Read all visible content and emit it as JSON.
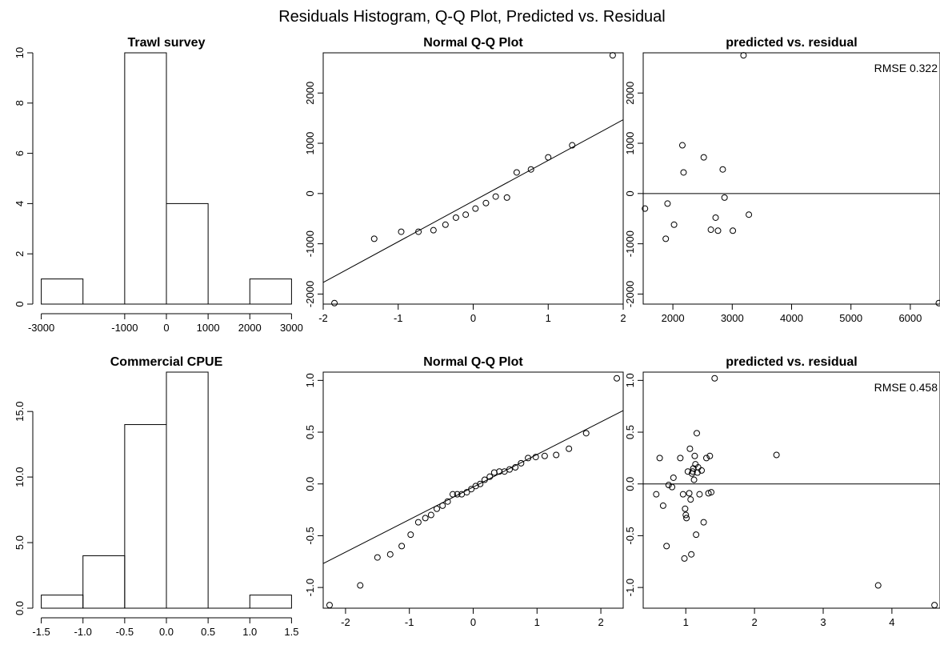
{
  "figure": {
    "title": "Residuals Histogram, Q-Q Plot, Predicted vs. Residual"
  },
  "chart_data": [
    {
      "type": "histogram",
      "title": "Trawl survey",
      "xlabel": "",
      "ylabel": "",
      "xlim": [
        -3000,
        3000
      ],
      "ylim": [
        0,
        10
      ],
      "xticks": [
        -3000,
        -1000,
        0,
        1000,
        2000,
        3000
      ],
      "yticks": [
        0,
        2,
        4,
        6,
        8,
        10
      ],
      "bins": [
        {
          "from": -3000,
          "to": -2000,
          "count": 1
        },
        {
          "from": -2000,
          "to": -1000,
          "count": 0
        },
        {
          "from": -1000,
          "to": 0,
          "count": 10
        },
        {
          "from": 0,
          "to": 1000,
          "count": 4
        },
        {
          "from": 1000,
          "to": 2000,
          "count": 0
        },
        {
          "from": 2000,
          "to": 3000,
          "count": 1
        }
      ]
    },
    {
      "type": "scatter",
      "title": "Normal Q-Q Plot",
      "xlabel": "",
      "ylabel": "",
      "xlim": [
        -2,
        2
      ],
      "ylim": [
        -2200,
        2800
      ],
      "xticks": [
        -2,
        -1,
        0,
        1,
        2
      ],
      "yticks": [
        -2000,
        -1000,
        0,
        1000,
        2000
      ],
      "line": {
        "x": [
          -2.1,
          2.1
        ],
        "y": [
          -1850,
          1550
        ]
      },
      "points": [
        [
          -1.85,
          -2180
        ],
        [
          -1.32,
          -900
        ],
        [
          -0.96,
          -760
        ],
        [
          -0.73,
          -760
        ],
        [
          -0.53,
          -730
        ],
        [
          -0.37,
          -620
        ],
        [
          -0.23,
          -480
        ],
        [
          -0.1,
          -420
        ],
        [
          0.03,
          -300
        ],
        [
          0.17,
          -190
        ],
        [
          0.3,
          -60
        ],
        [
          0.45,
          -80
        ],
        [
          0.58,
          420
        ],
        [
          0.77,
          480
        ],
        [
          1.0,
          720
        ],
        [
          1.32,
          960
        ],
        [
          1.86,
          2750
        ]
      ]
    },
    {
      "type": "scatter",
      "title": "predicted vs. residual",
      "xlabel": "",
      "ylabel": "",
      "xlim": [
        1500,
        6500
      ],
      "ylim": [
        -2200,
        2800
      ],
      "xticks": [
        2000,
        3000,
        4000,
        5000,
        6000
      ],
      "yticks": [
        -2000,
        -1000,
        0,
        1000,
        2000
      ],
      "hline": 0,
      "annotation": "RMSE 0.322",
      "points": [
        [
          1530,
          -300
        ],
        [
          1880,
          -900
        ],
        [
          1910,
          -200
        ],
        [
          2020,
          -620
        ],
        [
          2160,
          960
        ],
        [
          2180,
          420
        ],
        [
          2520,
          720
        ],
        [
          2640,
          -720
        ],
        [
          2720,
          -480
        ],
        [
          2760,
          -740
        ],
        [
          2840,
          480
        ],
        [
          2870,
          -80
        ],
        [
          3010,
          -740
        ],
        [
          3190,
          2750
        ],
        [
          3280,
          -420
        ],
        [
          6480,
          -2180
        ]
      ]
    },
    {
      "type": "histogram",
      "title": "Commercial CPUE",
      "xlabel": "",
      "ylabel": "",
      "xlim": [
        -1.5,
        1.5
      ],
      "ylim": [
        0,
        18
      ],
      "xticks": [
        -1.5,
        -1.0,
        -0.5,
        0.0,
        0.5,
        1.0,
        1.5
      ],
      "yticks": [
        0,
        5,
        10,
        15
      ],
      "bins": [
        {
          "from": -1.5,
          "to": -1.0,
          "count": 1
        },
        {
          "from": -1.0,
          "to": -0.5,
          "count": 4
        },
        {
          "from": -0.5,
          "to": 0.0,
          "count": 14
        },
        {
          "from": 0.0,
          "to": 0.5,
          "count": 18
        },
        {
          "from": 0.5,
          "to": 1.0,
          "count": 0
        },
        {
          "from": 1.0,
          "to": 1.5,
          "count": 1
        }
      ]
    },
    {
      "type": "scatter",
      "title": "Normal Q-Q Plot",
      "xlabel": "",
      "ylabel": "",
      "xlim": [
        -2.35,
        2.35
      ],
      "ylim": [
        -1.2,
        1.08
      ],
      "xticks": [
        -2,
        -1,
        0,
        1,
        2
      ],
      "yticks": [
        -1.0,
        -0.5,
        0.0,
        0.5,
        1.0
      ],
      "line": {
        "x": [
          -2.45,
          2.45
        ],
        "y": [
          -0.8,
          0.74
        ]
      },
      "points": [
        [
          -2.25,
          -1.17
        ],
        [
          -1.77,
          -0.98
        ],
        [
          -1.5,
          -0.71
        ],
        [
          -1.3,
          -0.68
        ],
        [
          -1.12,
          -0.6
        ],
        [
          -0.98,
          -0.49
        ],
        [
          -0.86,
          -0.37
        ],
        [
          -0.75,
          -0.33
        ],
        [
          -0.66,
          -0.3
        ],
        [
          -0.57,
          -0.24
        ],
        [
          -0.48,
          -0.21
        ],
        [
          -0.4,
          -0.17
        ],
        [
          -0.32,
          -0.1
        ],
        [
          -0.25,
          -0.1
        ],
        [
          -0.18,
          -0.1
        ],
        [
          -0.1,
          -0.08
        ],
        [
          -0.03,
          -0.05
        ],
        [
          0.04,
          -0.02
        ],
        [
          0.11,
          0.0
        ],
        [
          0.18,
          0.04
        ],
        [
          0.26,
          0.07
        ],
        [
          0.33,
          0.11
        ],
        [
          0.41,
          0.12
        ],
        [
          0.49,
          0.12
        ],
        [
          0.57,
          0.14
        ],
        [
          0.66,
          0.16
        ],
        [
          0.75,
          0.2
        ],
        [
          0.86,
          0.25
        ],
        [
          0.98,
          0.26
        ],
        [
          1.12,
          0.27
        ],
        [
          1.3,
          0.28
        ],
        [
          1.5,
          0.34
        ],
        [
          1.77,
          0.49
        ],
        [
          2.25,
          1.02
        ]
      ]
    },
    {
      "type": "scatter",
      "title": "predicted vs. residual",
      "xlabel": "",
      "ylabel": "",
      "xlim": [
        0.38,
        4.7
      ],
      "ylim": [
        -1.2,
        1.08
      ],
      "xticks": [
        1,
        2,
        3,
        4
      ],
      "yticks": [
        -1.0,
        -0.5,
        0.0,
        0.5,
        1.0
      ],
      "hline": 0,
      "annotation": "RMSE 0.458",
      "points": [
        [
          0.57,
          -0.1
        ],
        [
          0.62,
          0.25
        ],
        [
          0.67,
          -0.21
        ],
        [
          0.72,
          -0.6
        ],
        [
          0.75,
          -0.01
        ],
        [
          0.8,
          -0.03
        ],
        [
          0.82,
          0.06
        ],
        [
          0.92,
          0.25
        ],
        [
          0.96,
          -0.1
        ],
        [
          0.98,
          -0.72
        ],
        [
          0.99,
          -0.24
        ],
        [
          1.0,
          -0.3
        ],
        [
          1.01,
          -0.33
        ],
        [
          1.03,
          0.12
        ],
        [
          1.05,
          -0.09
        ],
        [
          1.06,
          0.34
        ],
        [
          1.07,
          -0.15
        ],
        [
          1.08,
          -0.68
        ],
        [
          1.09,
          0.1
        ],
        [
          1.1,
          0.12
        ],
        [
          1.11,
          0.15
        ],
        [
          1.12,
          0.04
        ],
        [
          1.13,
          0.27
        ],
        [
          1.14,
          0.19
        ],
        [
          1.15,
          -0.49
        ],
        [
          1.16,
          0.49
        ],
        [
          1.17,
          0.11
        ],
        [
          1.18,
          0.16
        ],
        [
          1.2,
          -0.1
        ],
        [
          1.23,
          0.13
        ],
        [
          1.26,
          -0.37
        ],
        [
          1.3,
          0.25
        ],
        [
          1.33,
          -0.09
        ],
        [
          1.35,
          0.27
        ],
        [
          1.37,
          -0.08
        ],
        [
          1.42,
          1.02
        ],
        [
          2.32,
          0.28
        ],
        [
          3.8,
          -0.98
        ],
        [
          4.62,
          -1.17
        ]
      ]
    }
  ]
}
